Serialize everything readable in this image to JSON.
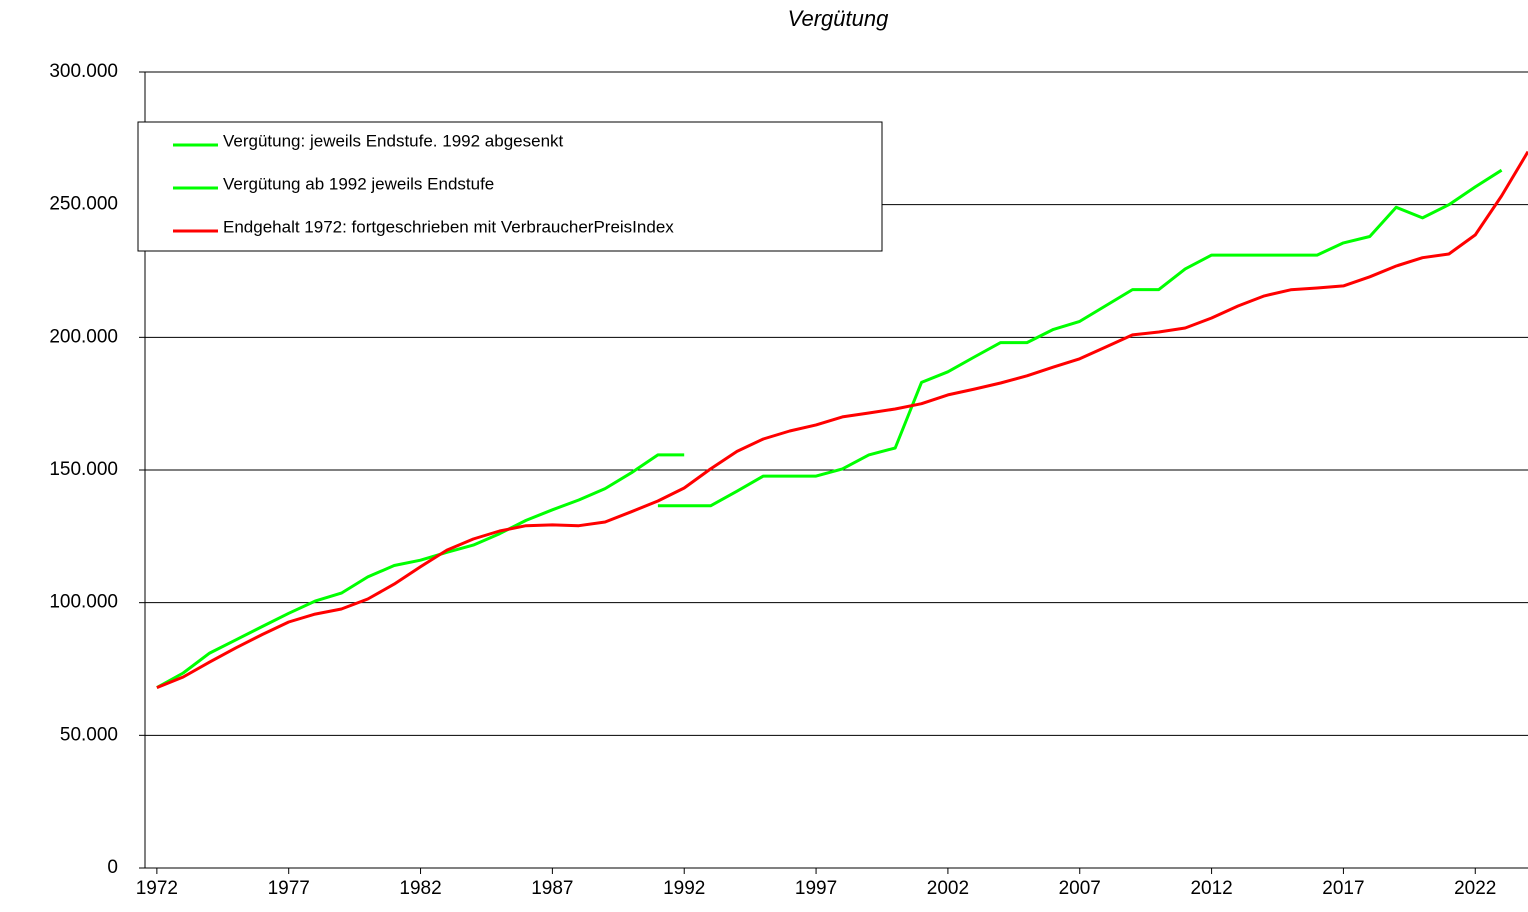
{
  "chart_data": {
    "type": "line",
    "title": "Vergütung",
    "x": [
      1972,
      1973,
      1974,
      1975,
      1976,
      1977,
      1978,
      1979,
      1980,
      1981,
      1982,
      1983,
      1984,
      1985,
      1986,
      1987,
      1988,
      1989,
      1990,
      1991,
      1992,
      1993,
      1994,
      1995,
      1996,
      1997,
      1998,
      1999,
      2000,
      2001,
      2002,
      2003,
      2004,
      2005,
      2006,
      2007,
      2008,
      2009,
      2010,
      2011,
      2012,
      2013,
      2014,
      2015,
      2016,
      2017,
      2018,
      2019,
      2020,
      2021,
      2022,
      2023,
      2024
    ],
    "series": [
      {
        "name": "Vergütung: jeweils Endstufe. 1992 abgesenkt",
        "color": "#00ff00",
        "values": [
          68000,
          73500,
          81000,
          86000,
          91000,
          96000,
          100600,
          103600,
          109700,
          114000,
          116000,
          119000,
          121700,
          126000,
          131000,
          135000,
          138700,
          143000,
          149000,
          155700,
          155700,
          null,
          null,
          null,
          null,
          null,
          null,
          null,
          null,
          null,
          null,
          null,
          null,
          null,
          null,
          null,
          null,
          null,
          null,
          null,
          null,
          null,
          null,
          null,
          null,
          null,
          null,
          null,
          null,
          null,
          null,
          null,
          null
        ]
      },
      {
        "name": "Vergütung ab 1992 jeweils Endstufe",
        "color": "#00ff00",
        "values": [
          null,
          null,
          null,
          null,
          null,
          null,
          null,
          null,
          null,
          null,
          null,
          null,
          null,
          null,
          null,
          null,
          null,
          null,
          null,
          136500,
          136500,
          136500,
          142000,
          147700,
          147700,
          147700,
          150400,
          155700,
          158300,
          183000,
          187000,
          192600,
          198000,
          198000,
          203000,
          206000,
          212000,
          218000,
          218000,
          225800,
          231000,
          231000,
          231000,
          231000,
          231000,
          235600,
          238000,
          249000,
          245000,
          250000,
          256700,
          263000,
          null
        ]
      },
      {
        "name": "Endgehalt 1972: fortgeschrieben mit VerbraucherPreisIndex",
        "color": "#ff0000",
        "values": [
          68000,
          72000,
          77600,
          83000,
          88000,
          92700,
          95700,
          97600,
          101400,
          107000,
          113500,
          119800,
          124000,
          127000,
          129000,
          129300,
          129000,
          130400,
          134300,
          138300,
          143200,
          150400,
          157000,
          161700,
          164700,
          167000,
          170000,
          171500,
          173000,
          175000,
          178300,
          180500,
          182800,
          185500,
          188800,
          191900,
          196400,
          200900,
          202000,
          203500,
          207300,
          211800,
          215600,
          217900,
          218600,
          219400,
          222800,
          226900,
          230000,
          231400,
          238600,
          253300,
          270000
        ]
      }
    ],
    "xlim": [
      1971.55,
      2024
    ],
    "xticks": [
      1972,
      1977,
      1982,
      1987,
      1992,
      1997,
      2002,
      2007,
      2012,
      2017,
      2022
    ],
    "ylim": [
      0,
      300000
    ],
    "yticks": [
      0,
      {
        "value": 50000,
        "label": "50.000"
      },
      {
        "value": 100000,
        "label": "100.000"
      },
      {
        "value": 150000,
        "label": "150.000"
      },
      {
        "value": 200000,
        "label": "200.000"
      },
      {
        "value": 250000,
        "label": "250.000"
      },
      {
        "value": 300000,
        "label": "300.000"
      }
    ],
    "grid": true,
    "legend": "top-left"
  }
}
